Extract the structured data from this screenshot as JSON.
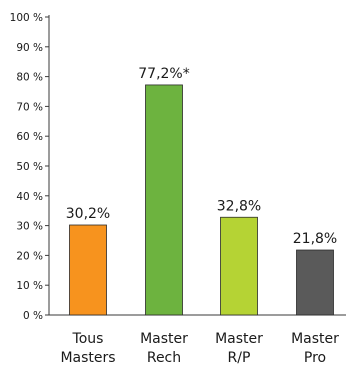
{
  "chart_data": {
    "type": "bar",
    "title": "",
    "xlabel": "",
    "ylabel": "",
    "ylim": [
      0,
      100
    ],
    "ytick_values": [
      0,
      10,
      20,
      30,
      40,
      50,
      60,
      70,
      80,
      90,
      100
    ],
    "ytick_labels": [
      "0 %",
      "10 %",
      "20 %",
      "30 %",
      "40 %",
      "50 %",
      "60 %",
      "70 %",
      "80 %",
      "90 %",
      "100 %"
    ],
    "grid": false,
    "legend": "none",
    "categories": [
      [
        "Tous",
        "Masters"
      ],
      [
        "Master",
        "Rech"
      ],
      [
        "Master",
        "R/P"
      ],
      [
        "Master",
        "Pro"
      ]
    ],
    "values": [
      30.2,
      77.2,
      32.8,
      21.8
    ],
    "value_labels": [
      "30,2%",
      "77,2%*",
      "32,8%",
      "21,8%"
    ],
    "colors": [
      "#f7931e",
      "#6db33f",
      "#b5d334",
      "#5a5a5a"
    ],
    "axis_color": "#3a3a3a"
  }
}
